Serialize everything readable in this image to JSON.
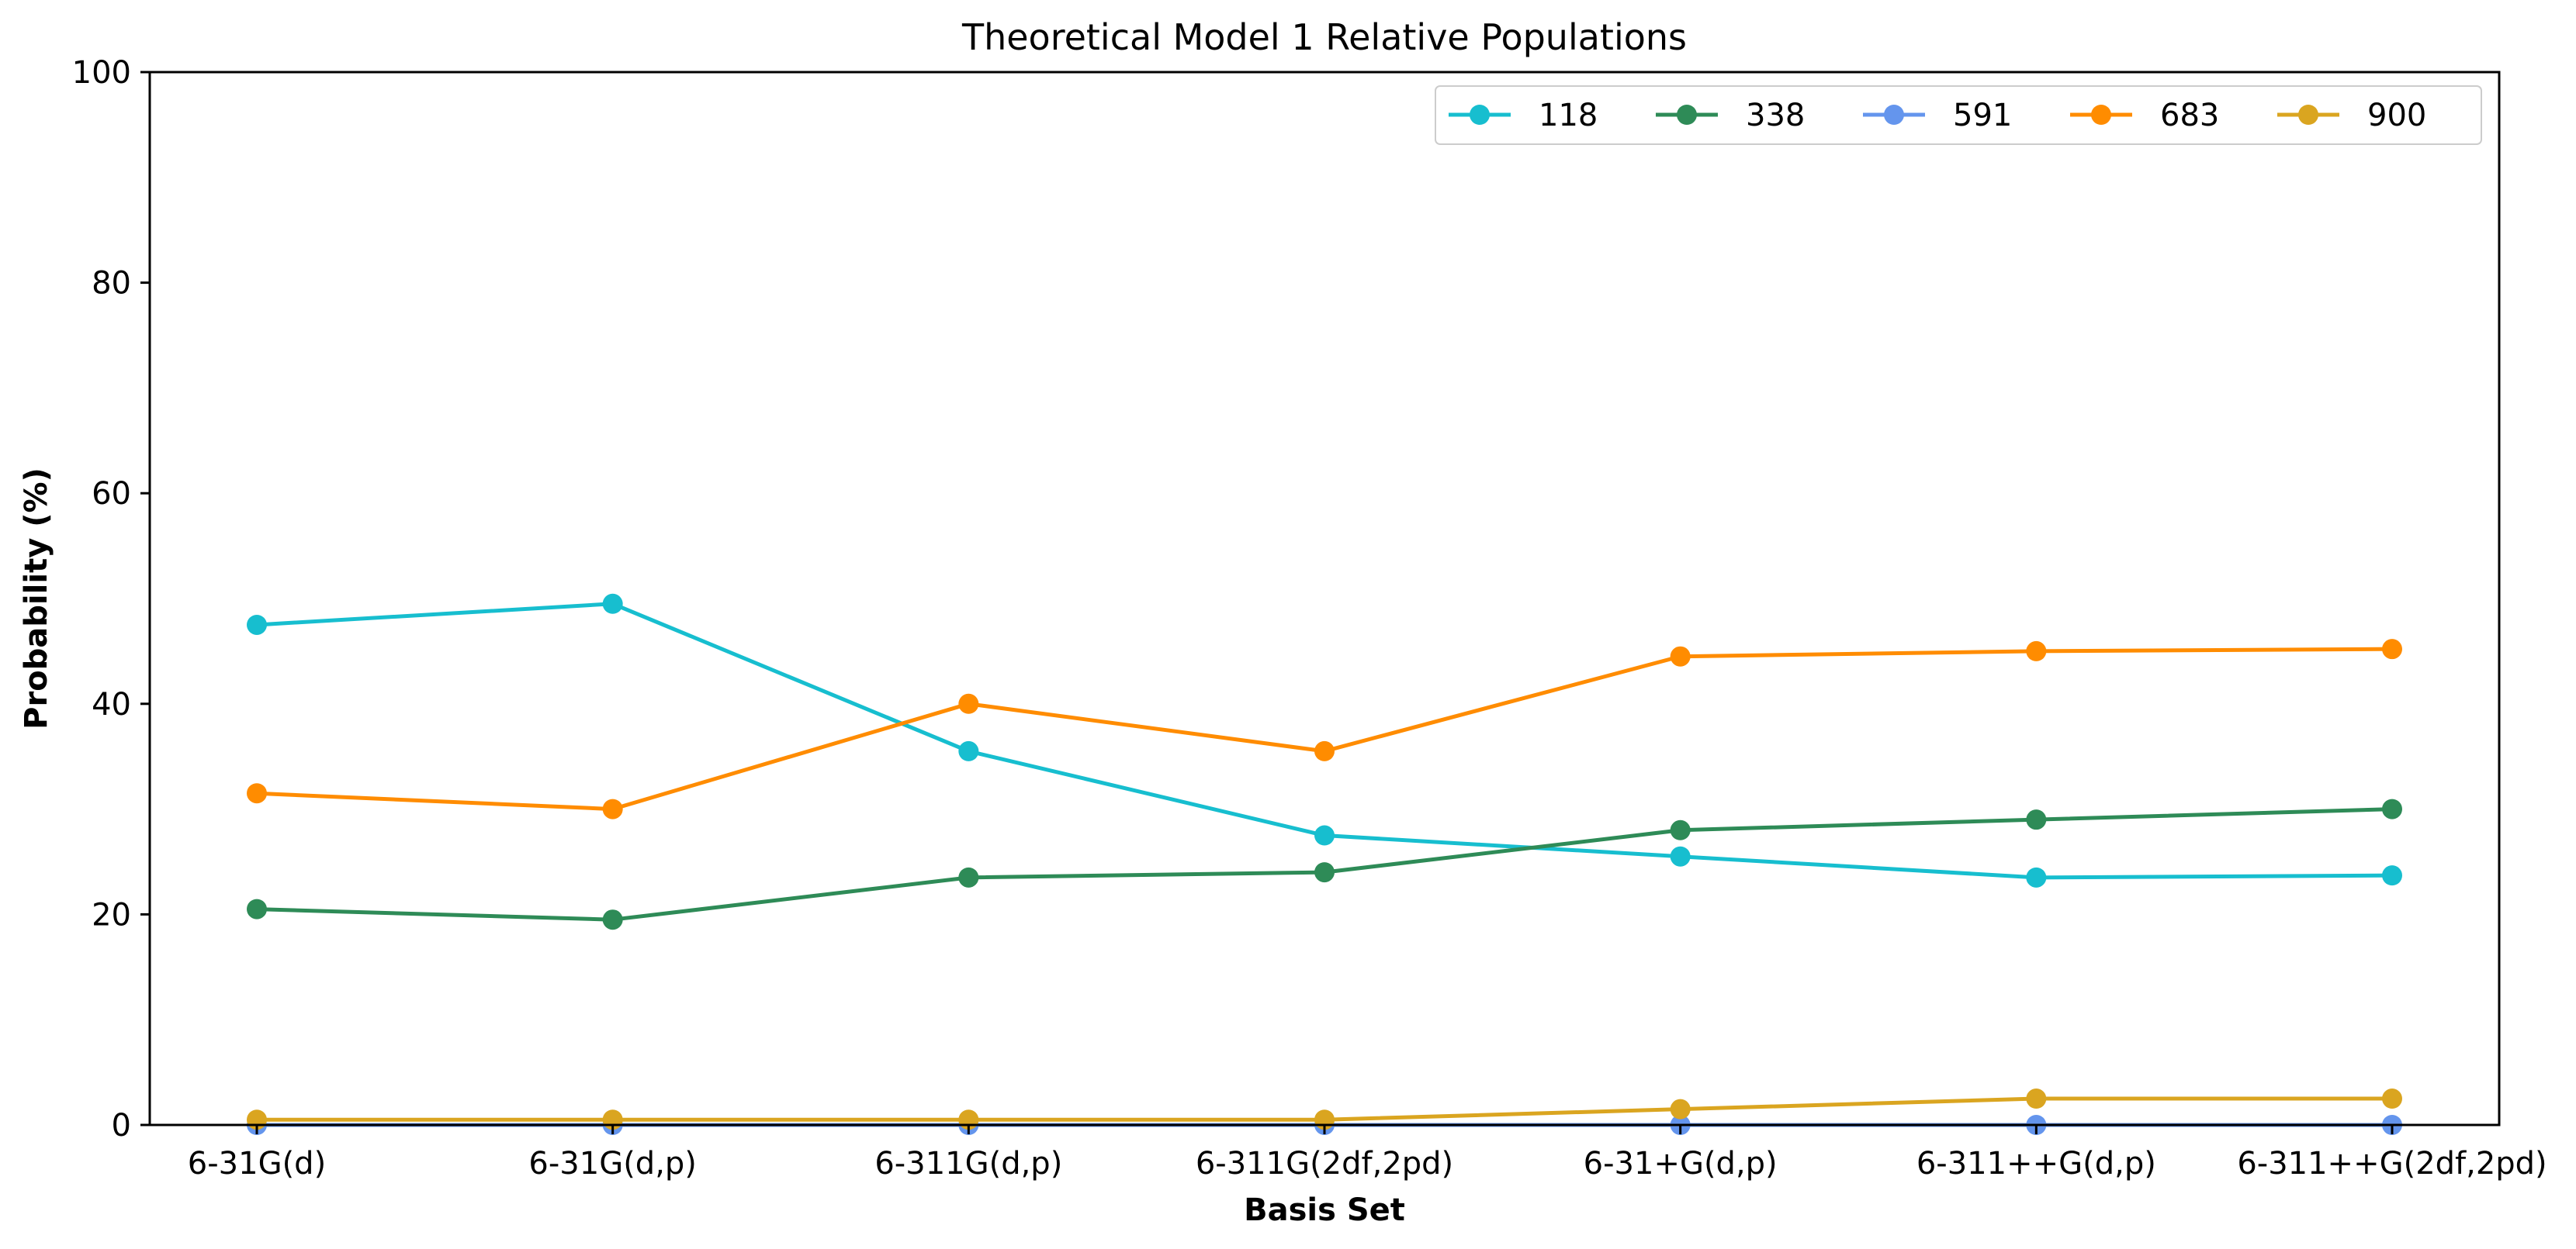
{
  "chart_data": {
    "type": "line",
    "title": "Theoretical Model 1 Relative Populations",
    "xlabel": "Basis Set",
    "ylabel": "Probability (%)",
    "ylim": [
      0,
      100
    ],
    "yticks": [
      "0",
      "20",
      "40",
      "60",
      "80",
      "100"
    ],
    "categories": [
      "6-31G(d)",
      "6-31G(d,p)",
      "6-311G(d,p)",
      "6-311G(2df,2pd)",
      "6-31+G(d,p)",
      "6-311++G(d,p)",
      "6-311++G(2df,2pd)"
    ],
    "grid": false,
    "legend_placement": "top-right",
    "series": [
      {
        "name": "118",
        "color": "#17becf",
        "values": [
          47.5,
          49.5,
          35.5,
          27.5,
          25.5,
          23.5,
          23.7
        ]
      },
      {
        "name": "338",
        "color": "#2e8b57",
        "values": [
          20.5,
          19.5,
          23.5,
          24.0,
          28.0,
          29.0,
          30.0
        ]
      },
      {
        "name": "591",
        "color": "#6495ed",
        "values": [
          0.0,
          0.0,
          0.0,
          0.0,
          0.0,
          0.0,
          0.0
        ]
      },
      {
        "name": "683",
        "color": "#ff8c00",
        "values": [
          31.5,
          30.0,
          40.0,
          35.5,
          44.5,
          45.0,
          45.2
        ]
      },
      {
        "name": "900",
        "color": "#daa520",
        "values": [
          0.5,
          0.5,
          0.5,
          0.5,
          1.5,
          2.5,
          2.5
        ]
      }
    ]
  }
}
